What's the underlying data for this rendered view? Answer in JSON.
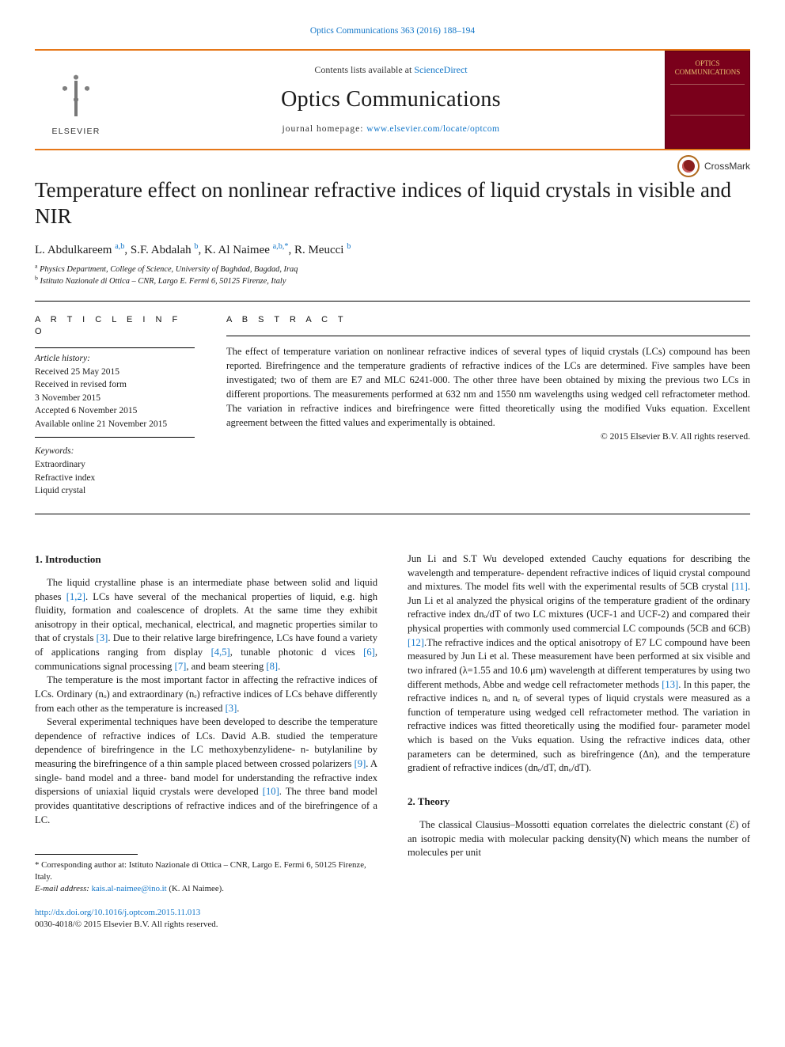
{
  "top_citation_link": "Optics Communications 363 (2016) 188–194",
  "header": {
    "avail_prefix": "Contents lists available at ",
    "avail_link": "ScienceDirect",
    "journal_name": "Optics Communications",
    "home_prefix": "journal homepage: ",
    "home_url": "www.elsevier.com/locate/optcom",
    "publisher_word": "ELSEVIER",
    "cover_title": "OPTICS COMMUNICATIONS"
  },
  "crossmark_label": "CrossMark",
  "title": "Temperature effect on nonlinear refractive indices of liquid crystals in visible and NIR",
  "authors_html": "L. Abdulkareem <sup>a,b</sup>, S.F. Abdalah <sup>b</sup>, K. Al Naimee <sup>a,b,*</sup>, R. Meucci <sup>b</sup>",
  "affiliations": [
    {
      "sup": "a",
      "text": "Physics Department, College of Science, University of Baghdad, Bagdad, Iraq"
    },
    {
      "sup": "b",
      "text": "Istituto Nazionale di Ottica – CNR, Largo E. Fermi 6, 50125 Firenze, Italy"
    }
  ],
  "article_info_head": "A R T I C L E  I N F O",
  "abstract_head": "A B S T R A C T",
  "history_label": "Article history:",
  "history": [
    "Received 25 May 2015",
    "Received in revised form",
    "3 November 2015",
    "Accepted 6 November 2015",
    "Available online 21 November 2015"
  ],
  "keywords_label": "Keywords:",
  "keywords": [
    "Extraordinary",
    "Refractive index",
    "Liquid crystal"
  ],
  "abstract": "The effect of temperature variation on nonlinear refractive indices of several types of liquid crystals (LCs) compound has been reported. Birefringence and the temperature gradients of refractive indices of the LCs are determined. Five samples have been investigated; two of them are E7 and MLC 6241-000. The other three have been obtained by mixing the previous two LCs in different proportions. The measurements performed at 632 nm and 1550 nm wavelengths using wedged cell refractometer method. The variation in refractive indices and birefringence were fitted theoretically using the modified Vuks equation. Excellent agreement between the fitted values and experimentally is obtained.",
  "copyright": "© 2015 Elsevier B.V. All rights reserved.",
  "sections": {
    "intro_title": "1.  Introduction",
    "theory_title": "2.  Theory"
  },
  "paras": {
    "p1": "The liquid crystalline phase is an intermediate phase between solid and liquid phases [1,2]. LCs have several of the mechanical properties of liquid, e.g. high fluidity, formation and coalescence of droplets. At the same time they exhibit anisotropy in their optical, mechanical, electrical, and magnetic properties similar to that of crystals [3]. Due to their relative large birefringence, LCs have found a variety of applications ranging from display [4,5], tunable photonic d vices [6], communications signal processing [7], and beam steering [8].",
    "p2": "The temperature is the most important factor in affecting the refractive indices of LCs. Ordinary (nₒ) and extraordinary (nₑ) refractive indices of LCs behave differently from each other as the temperature is increased [3].",
    "p3": "Several experimental techniques have been developed to describe the temperature dependence of refractive indices of LCs. David A.B. studied the temperature dependence of birefringence in the LC methoxybenzylidene- n- butylaniline by measuring the birefringence of a thin sample placed between crossed polarizers [9]. A single- band model and a three- band model for understanding the refractive index dispersions of uniaxial liquid crystals were developed [10]. The three band model provides quantitative descriptions of refractive indices and of the birefringence of a LC.",
    "p4": "Jun Li and S.T Wu developed extended Cauchy equations for describing the wavelength and temperature- dependent refractive indices of liquid crystal compound and mixtures. The model fits well with the experimental results of 5CB crystal [11]. Jun Li et al analyzed the physical origins of the temperature gradient of the ordinary refractive index dnₒ/dT of two LC mixtures (UCF-1 and UCF-2) and compared their physical properties with commonly used commercial LC compounds (5CB and 6CB) [12].The refractive indices and the optical anisotropy of E7 LC compound have been measured by Jun Li et al. These measurement have been performed at six visible and two infrared (λ=1.55 and 10.6 μm) wavelength at different temperatures by using two different methods, Abbe and wedge cell refractometer methods [13]. In this paper, the refractive indices nₒ and nₑ of several types of liquid crystals were measured as a function of temperature using wedged cell refractometer method. The variation in refractive indices was fitted theoretically using the modified four- parameter model which is based on the Vuks equation. Using the refractive indices data, other parameters can be determined, such as birefringence (Δn), and the temperature gradient of refractive indices (dnₑ/dT, dnₒ/dT).",
    "p5": "The classical Clausius–Mossotti equation correlates the dielectric constant (ℰ) of an isotropic media with molecular packing density(N) which means the number of molecules per unit"
  },
  "refs": {
    "r1": "[1,2]",
    "r3": "[3]",
    "r4": "[4,5]",
    "r6": "[6]",
    "r7": "[7]",
    "r8": "[8]",
    "r9": "[9]",
    "r10": "[10]",
    "r11": "[11]",
    "r12": "[12]",
    "r13": "[13]"
  },
  "corresponding_note": "* Corresponding author at: Istituto Nazionale di Ottica – CNR, Largo E. Fermi 6, 50125 Firenze, Italy.",
  "email_label": "E-mail address: ",
  "email": "kais.al-naimee@ino.it",
  "email_of": " (K. Al Naimee).",
  "doi_url": "http://dx.doi.org/10.1016/j.optcom.2015.11.013",
  "issn_line": "0030-4018/© 2015 Elsevier B.V. All rights reserved.",
  "colors": {
    "orange_rule": "#e67718",
    "link": "#1276c8",
    "cover_bg": "#7a001b",
    "cover_text": "#e8c070"
  }
}
